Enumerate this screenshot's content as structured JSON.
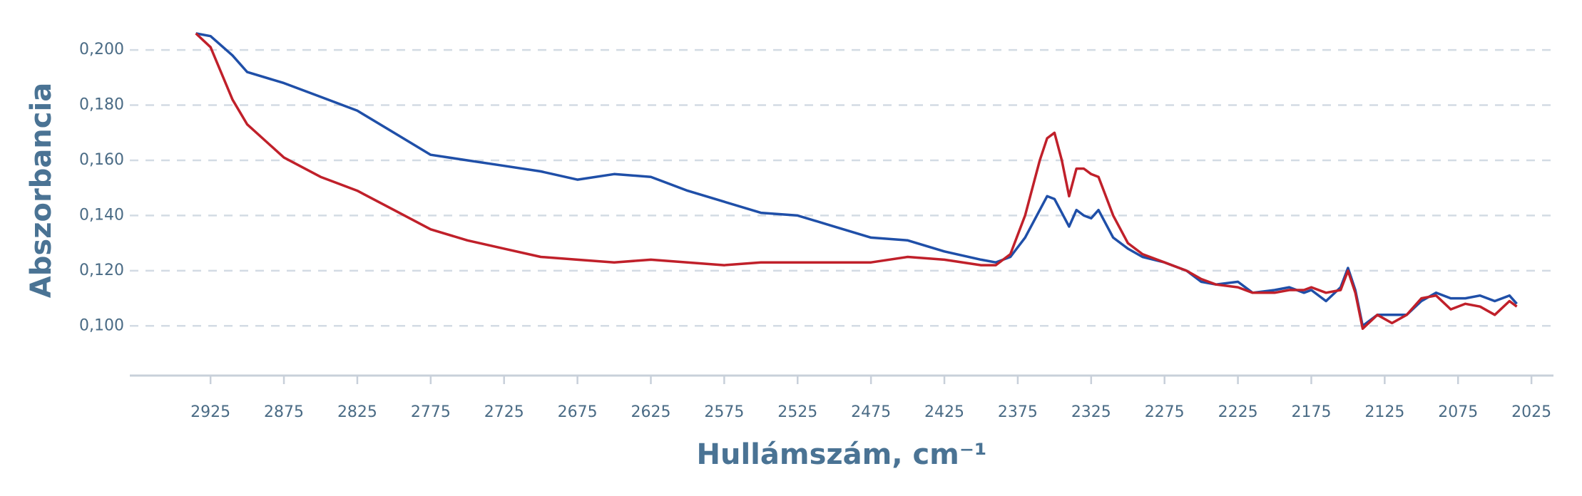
{
  "chart_data": {
    "type": "line",
    "x_label": "Hullámszám, cm⁻¹",
    "y_label": "Abszorbancia",
    "x": [
      2935,
      2925,
      2910,
      2900,
      2875,
      2850,
      2825,
      2800,
      2775,
      2750,
      2725,
      2700,
      2675,
      2650,
      2625,
      2600,
      2575,
      2550,
      2525,
      2500,
      2475,
      2450,
      2425,
      2400,
      2390,
      2380,
      2370,
      2360,
      2355,
      2350,
      2345,
      2340,
      2335,
      2330,
      2325,
      2320,
      2310,
      2300,
      2290,
      2275,
      2260,
      2250,
      2240,
      2225,
      2215,
      2200,
      2190,
      2180,
      2175,
      2165,
      2155,
      2150,
      2145,
      2140,
      2130,
      2120,
      2110,
      2100,
      2090,
      2080,
      2070,
      2060,
      2050,
      2040,
      2035
    ],
    "series": [
      {
        "color": "#1f4fa8",
        "values": [
          0.206,
          0.205,
          0.198,
          0.192,
          0.188,
          0.183,
          0.178,
          0.17,
          0.162,
          0.16,
          0.158,
          0.156,
          0.153,
          0.155,
          0.154,
          0.149,
          0.145,
          0.141,
          0.14,
          0.136,
          0.132,
          0.131,
          0.127,
          0.124,
          0.123,
          0.125,
          0.132,
          0.142,
          0.147,
          0.146,
          0.141,
          0.136,
          0.142,
          0.14,
          0.139,
          0.142,
          0.132,
          0.128,
          0.125,
          0.123,
          0.12,
          0.116,
          0.115,
          0.116,
          0.112,
          0.113,
          0.114,
          0.112,
          0.113,
          0.109,
          0.114,
          0.121,
          0.113,
          0.1,
          0.104,
          0.104,
          0.104,
          0.109,
          0.112,
          0.11,
          0.11,
          0.111,
          0.109,
          0.111,
          0.108
        ]
      },
      {
        "color": "#c0202a",
        "values": [
          0.206,
          0.201,
          0.182,
          0.173,
          0.161,
          0.154,
          0.149,
          0.142,
          0.135,
          0.131,
          0.128,
          0.125,
          0.124,
          0.123,
          0.124,
          0.123,
          0.122,
          0.123,
          0.123,
          0.123,
          0.123,
          0.125,
          0.124,
          0.122,
          0.122,
          0.126,
          0.14,
          0.16,
          0.168,
          0.17,
          0.16,
          0.147,
          0.157,
          0.157,
          0.155,
          0.154,
          0.14,
          0.13,
          0.126,
          0.123,
          0.12,
          0.117,
          0.115,
          0.114,
          0.112,
          0.112,
          0.113,
          0.113,
          0.114,
          0.112,
          0.113,
          0.12,
          0.112,
          0.099,
          0.104,
          0.101,
          0.104,
          0.11,
          0.111,
          0.106,
          0.108,
          0.107,
          0.104,
          0.109,
          0.107
        ]
      }
    ],
    "xlim": [
      2980,
      2010
    ],
    "xticks": [
      2925,
      2875,
      2825,
      2775,
      2725,
      2675,
      2625,
      2575,
      2525,
      2475,
      2425,
      2375,
      2325,
      2275,
      2225,
      2175,
      2125,
      2075,
      2025
    ],
    "ylim": [
      0.082,
      0.207
    ],
    "yticks": [
      {
        "value": 0.1,
        "label": "0,100"
      },
      {
        "value": 0.12,
        "label": "0,120"
      },
      {
        "value": 0.14,
        "label": "0,140"
      },
      {
        "value": 0.16,
        "label": "0,160"
      },
      {
        "value": 0.18,
        "label": "0,180"
      },
      {
        "value": 0.2,
        "label": "0,200"
      }
    ],
    "grid": true
  }
}
